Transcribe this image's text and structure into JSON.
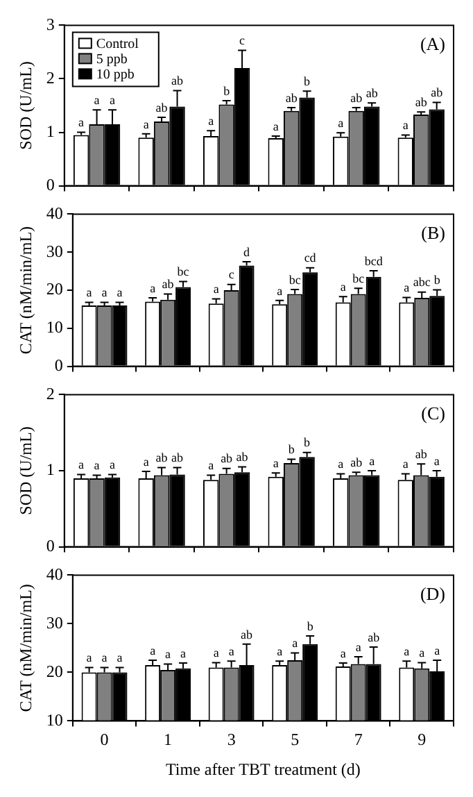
{
  "chart_data": [
    {
      "type": "bar",
      "annotations": [
        "(A)"
      ],
      "ylabel": "SOD (U/mL)",
      "categories": [
        "0",
        "1",
        "3",
        "5",
        "7",
        "9"
      ],
      "ylim": [
        0,
        3
      ],
      "yticks": [
        0,
        1,
        2,
        3
      ],
      "tick_labels": "y",
      "legend": "top left",
      "series": [
        {
          "name": "Control",
          "color": "#ffffff",
          "values": [
            0.95,
            0.9,
            0.93,
            0.89,
            0.92,
            0.9
          ],
          "errors": [
            [
              0.95,
              1.0
            ],
            [
              0.9,
              0.97
            ],
            [
              0.93,
              1.03
            ],
            [
              0.89,
              0.93
            ],
            [
              0.92,
              0.99
            ],
            [
              0.9,
              0.95
            ]
          ],
          "value_labels": [
            "a",
            "a",
            "a",
            "a",
            "a",
            "a"
          ]
        },
        {
          "name": "5 ppb",
          "color": "#808080",
          "values": [
            1.15,
            1.2,
            1.52,
            1.4,
            1.4,
            1.33
          ],
          "errors": [
            [
              1.15,
              1.42
            ],
            [
              1.2,
              1.28
            ],
            [
              1.52,
              1.59
            ],
            [
              1.4,
              1.46
            ],
            [
              1.4,
              1.46
            ],
            [
              1.33,
              1.38
            ]
          ],
          "value_labels": [
            "a",
            "ab",
            "b",
            "ab",
            "ab",
            "ab"
          ]
        },
        {
          "name": "10 ppb",
          "color": "#000000",
          "values": [
            1.15,
            1.48,
            2.2,
            1.65,
            1.48,
            1.43
          ],
          "errors": [
            [
              1.15,
              1.42
            ],
            [
              1.48,
              1.78
            ],
            [
              2.2,
              2.53
            ],
            [
              1.65,
              1.77
            ],
            [
              1.48,
              1.55
            ],
            [
              1.43,
              1.56
            ]
          ],
          "value_labels": [
            "a",
            "ab",
            "c",
            "b",
            "ab",
            "ab"
          ]
        }
      ]
    },
    {
      "type": "bar",
      "annotations": [
        "(B)"
      ],
      "ylabel": "CAT (nM/min/mL)",
      "categories": [
        "0",
        "1",
        "3",
        "5",
        "7",
        "9"
      ],
      "ylim": [
        0,
        40
      ],
      "yticks": [
        0,
        10,
        20,
        30,
        40
      ],
      "tick_labels": "y",
      "series": [
        {
          "color": "#ffffff",
          "values": [
            16,
            17,
            16.5,
            16.3,
            16.8,
            16.8
          ],
          "errors": [
            [
              16,
              16.8
            ],
            [
              17,
              18
            ],
            [
              16.5,
              17.7
            ],
            [
              16.3,
              17.3
            ],
            [
              16.8,
              18.3
            ],
            [
              16.8,
              18.1
            ]
          ],
          "value_labels": [
            "a",
            "a",
            "a",
            "a",
            "a",
            "a"
          ]
        },
        {
          "color": "#808080",
          "values": [
            16,
            17.5,
            20,
            19,
            19,
            18
          ],
          "errors": [
            [
              16,
              16.8
            ],
            [
              17.5,
              19
            ],
            [
              20,
              21.5
            ],
            [
              19,
              20.2
            ],
            [
              19,
              20.5
            ],
            [
              18,
              19.5
            ]
          ],
          "value_labels": [
            "a",
            "ab",
            "c",
            "bc",
            "bc",
            "abc"
          ]
        },
        {
          "color": "#000000",
          "values": [
            16,
            20.8,
            26.5,
            24.7,
            23.5,
            18.5
          ],
          "errors": [
            [
              16,
              16.8
            ],
            [
              20.8,
              22.3
            ],
            [
              26.5,
              27.5
            ],
            [
              24.7,
              25.9
            ],
            [
              23.5,
              25.1
            ],
            [
              18.5,
              20.1
            ]
          ],
          "value_labels": [
            "a",
            "bc",
            "d",
            "cd",
            "bcd",
            "b"
          ]
        }
      ]
    },
    {
      "type": "bar",
      "annotations": [
        "(C)"
      ],
      "ylabel": "SOD (U/mL)",
      "categories": [
        "0",
        "1",
        "3",
        "5",
        "7",
        "9"
      ],
      "ylim": [
        0,
        2
      ],
      "yticks": [
        0,
        1,
        2
      ],
      "tick_labels": "y",
      "series": [
        {
          "color": "#ffffff",
          "values": [
            0.9,
            0.9,
            0.88,
            0.92,
            0.9,
            0.88
          ],
          "errors": [
            [
              0.9,
              0.95
            ],
            [
              0.9,
              0.99
            ],
            [
              0.88,
              0.94
            ],
            [
              0.92,
              0.97
            ],
            [
              0.9,
              0.96
            ],
            [
              0.88,
              0.96
            ]
          ],
          "value_labels": [
            "a",
            "a",
            "a",
            "a",
            "a",
            "a"
          ]
        },
        {
          "color": "#808080",
          "values": [
            0.9,
            0.94,
            0.96,
            1.1,
            0.94,
            0.94
          ],
          "errors": [
            [
              0.9,
              0.94
            ],
            [
              0.94,
              1.04
            ],
            [
              0.96,
              1.03
            ],
            [
              1.1,
              1.15
            ],
            [
              0.94,
              0.98
            ],
            [
              0.94,
              1.09
            ]
          ],
          "value_labels": [
            "a",
            "ab",
            "ab",
            "b",
            "ab",
            "ab"
          ]
        },
        {
          "color": "#000000",
          "values": [
            0.91,
            0.95,
            0.98,
            1.18,
            0.94,
            0.92
          ],
          "errors": [
            [
              0.91,
              0.95
            ],
            [
              0.95,
              1.04
            ],
            [
              0.98,
              1.05
            ],
            [
              1.18,
              1.24
            ],
            [
              0.94,
              1.0
            ],
            [
              0.92,
              1.0
            ]
          ],
          "value_labels": [
            "a",
            "ab",
            "ab",
            "b",
            "a",
            "a"
          ]
        }
      ]
    },
    {
      "type": "bar",
      "annotations": [
        "(D)"
      ],
      "ylabel": "CAT (nM/min/mL)",
      "xlabel": "Time after TBT treatment (d)",
      "categories": [
        "0",
        "1",
        "3",
        "5",
        "7",
        "9"
      ],
      "ylim": [
        10,
        40
      ],
      "yticks": [
        10,
        20,
        30,
        40
      ],
      "series": [
        {
          "color": "#ffffff",
          "values": [
            20,
            21.5,
            21,
            21.5,
            21.2,
            21
          ],
          "errors": [
            [
              20,
              21
            ],
            [
              21.5,
              22.5
            ],
            [
              21,
              22
            ],
            [
              21.5,
              22.3
            ],
            [
              21.2,
              21.9
            ],
            [
              21,
              22.3
            ]
          ],
          "value_labels": [
            "a",
            "a",
            "a",
            "a",
            "a",
            "a"
          ]
        },
        {
          "color": "#808080",
          "values": [
            20,
            20.5,
            21,
            22.5,
            21.7,
            20.8
          ],
          "errors": [
            [
              20,
              21
            ],
            [
              20.5,
              21.7
            ],
            [
              21,
              22.3
            ],
            [
              22.5,
              24
            ],
            [
              21.7,
              23.2
            ],
            [
              20.8,
              22
            ]
          ],
          "value_labels": [
            "a",
            "a",
            "a",
            "a",
            "a",
            "a"
          ]
        },
        {
          "color": "#000000",
          "values": [
            20,
            20.8,
            21.5,
            25.8,
            21.7,
            20.2
          ],
          "errors": [
            [
              20,
              21
            ],
            [
              20.8,
              21.9
            ],
            [
              21.5,
              25.8
            ],
            [
              25.8,
              27.5
            ],
            [
              21.7,
              25.2
            ],
            [
              20.2,
              22.5
            ]
          ],
          "value_labels": [
            "a",
            "a",
            "ab",
            "b",
            "ab",
            "a"
          ]
        }
      ]
    }
  ]
}
